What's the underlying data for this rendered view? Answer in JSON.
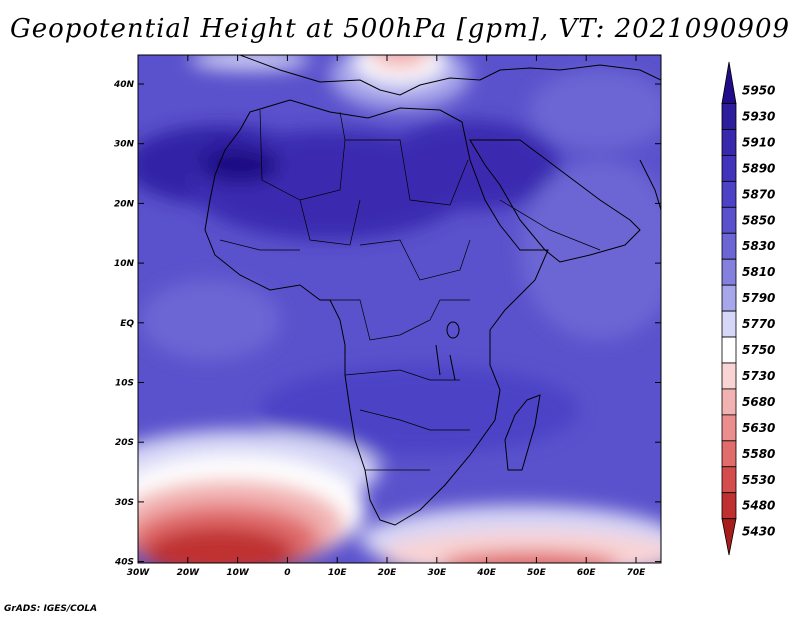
{
  "title": "Geopotential Height at 500hPa [gpm], VT: 2021090909",
  "credit": "GrADS: IGES/COLA",
  "map": {
    "lat_ticks": [
      "40N",
      "30N",
      "20N",
      "10N",
      "EQ",
      "10S",
      "20S",
      "30S",
      "40S"
    ],
    "lon_ticks": [
      "30W",
      "20W",
      "10W",
      "0",
      "10E",
      "20E",
      "30E",
      "40E",
      "50E",
      "60E",
      "70E"
    ],
    "lon_range": [
      -30,
      75
    ],
    "lat_range": [
      -40,
      45
    ]
  },
  "colorbar": {
    "levels": [
      "5950",
      "5930",
      "5910",
      "5890",
      "5870",
      "5850",
      "5830",
      "5810",
      "5790",
      "5770",
      "5750",
      "5730",
      "5680",
      "5630",
      "5580",
      "5530",
      "5480",
      "5430"
    ],
    "colors": [
      "#230c8a",
      "#2c1d9c",
      "#3728ad",
      "#4134bb",
      "#4c42c6",
      "#5a52cc",
      "#6c66d4",
      "#8480dd",
      "#a8a6ea",
      "#d6d6f6",
      "#ffffff",
      "#f9d4d4",
      "#f2b2b2",
      "#ea8e8e",
      "#e06c6c",
      "#d44c4c",
      "#c03030",
      "#a81c1c"
    ]
  }
}
